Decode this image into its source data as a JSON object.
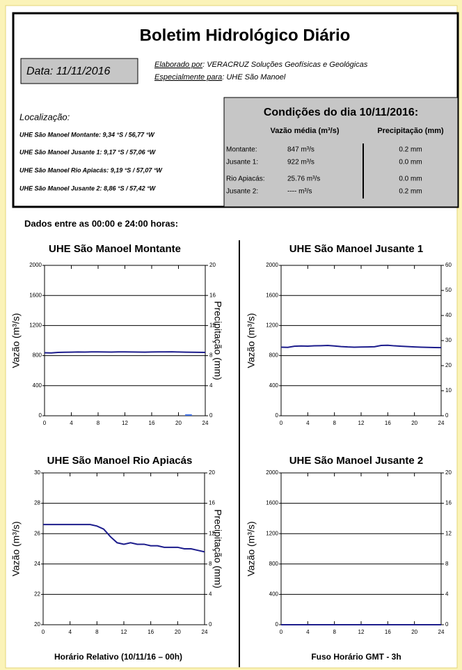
{
  "header": {
    "title": "Boletim Hidrológico Diário",
    "date": "Data: 11/11/2016",
    "elaborado_label": "Elaborado por",
    "elaborado_value": ": VERACRUZ Soluções Geofísicas e Geológicas",
    "especialmente_label": "Especialmente para",
    "especialmente_value": ": UHE São Manoel"
  },
  "localizacao": {
    "title": "Localização:",
    "lines": [
      "UHE São Manoel Montante: 9,34 °S / 56,77 °W",
      "UHE São Manoel Jusante 1: 9,17 °S / 57,06 °W",
      "UHE São Manoel Rio Apiacás: 9,19 °S / 57,07 °W",
      "UHE São Manoel Jusante 2: 8,86 °S / 57,42 °W"
    ]
  },
  "condicoes": {
    "title": "Condições do dia 10/11/2016:",
    "columns": [
      "Vazão média (m³/s)",
      "Precipitação (mm)"
    ],
    "rows": [
      [
        "Montante:",
        "847  m³/s",
        "0.2 mm"
      ],
      [
        "Jusante 1:",
        "922  m³/s",
        "0.0 mm"
      ],
      [
        "Rio Apiacás:",
        "25.76  m³/s",
        "0.0 mm"
      ],
      [
        "Jusante 2:",
        "----  m³/s",
        "0.2 mm"
      ]
    ]
  },
  "dados_label": "Dados entre as 00:00 e 24:00 horas:",
  "footer": {
    "left": "Horário Relativo (10/11/16 – 00h)",
    "right": "Fuso Horário GMT - 3h"
  },
  "chart_data": [
    {
      "type": "line",
      "title": "UHE São Manoel Montante",
      "ylabel": "Vazão (m³/s)",
      "y2label": "Precipitação (mm)",
      "x": [
        0,
        1,
        2,
        3,
        4,
        5,
        6,
        7,
        8,
        9,
        10,
        11,
        12,
        13,
        14,
        15,
        16,
        17,
        18,
        19,
        20,
        21,
        22,
        23,
        24
      ],
      "xlim": [
        0,
        24
      ],
      "xticks": [
        0,
        4,
        8,
        12,
        16,
        20,
        24
      ],
      "ylim": [
        0,
        2000
      ],
      "yticks": [
        0,
        400,
        800,
        1200,
        1600,
        2000
      ],
      "y2lim": [
        0,
        20
      ],
      "y2ticks": [
        0,
        4,
        8,
        12,
        16,
        20
      ],
      "grid": true,
      "series": [
        {
          "color": "#1c1c8c",
          "values": [
            838,
            836,
            842,
            845,
            846,
            848,
            847,
            849,
            850,
            848,
            847,
            849,
            850,
            848,
            847,
            846,
            848,
            850,
            849,
            851,
            848,
            846,
            845,
            844,
            843
          ]
        },
        {
          "color": "#3f6fe0",
          "axis": "y2",
          "x": [
            21.5
          ],
          "values": [
            0.2
          ]
        }
      ]
    },
    {
      "type": "line",
      "title": "UHE São Manoel Jusante 1",
      "ylabel": "Vazão (m³/s)",
      "x": [
        0,
        1,
        2,
        3,
        4,
        5,
        6,
        7,
        8,
        9,
        10,
        11,
        12,
        13,
        14,
        15,
        16,
        17,
        18,
        19,
        20,
        21,
        22,
        23,
        24
      ],
      "xlim": [
        0,
        24
      ],
      "xticks": [
        0,
        4,
        8,
        12,
        16,
        20,
        24
      ],
      "ylim": [
        0,
        2000
      ],
      "yticks": [
        0,
        400,
        800,
        1200,
        1600,
        2000
      ],
      "y2lim": [
        0,
        60
      ],
      "y2ticks": [
        0,
        10,
        20,
        30,
        40,
        50,
        60
      ],
      "grid": true,
      "series": [
        {
          "color": "#1c1c8c",
          "values": [
            912,
            910,
            925,
            928,
            926,
            930,
            932,
            935,
            928,
            920,
            915,
            912,
            914,
            916,
            918,
            935,
            938,
            930,
            925,
            920,
            916,
            912,
            910,
            908,
            906
          ]
        }
      ]
    },
    {
      "type": "line",
      "title": "UHE São Manoel Rio Apiacás",
      "ylabel": "Vazão (m³/s)",
      "y2label": "Precipitação (mm)",
      "x": [
        0,
        1,
        2,
        3,
        4,
        5,
        6,
        7,
        8,
        9,
        10,
        11,
        12,
        13,
        14,
        15,
        16,
        17,
        18,
        19,
        20,
        21,
        22,
        23,
        24
      ],
      "xlim": [
        0,
        24
      ],
      "xticks": [
        0,
        4,
        8,
        12,
        16,
        20,
        24
      ],
      "ylim": [
        20,
        30
      ],
      "yticks": [
        20,
        22,
        24,
        26,
        28,
        30
      ],
      "y2lim": [
        0,
        20
      ],
      "y2ticks": [
        0,
        4,
        8,
        12,
        16,
        20
      ],
      "grid": true,
      "series": [
        {
          "color": "#1c1c8c",
          "values": [
            26.6,
            26.6,
            26.6,
            26.6,
            26.6,
            26.6,
            26.6,
            26.6,
            26.5,
            26.3,
            25.8,
            25.4,
            25.3,
            25.4,
            25.3,
            25.3,
            25.2,
            25.2,
            25.1,
            25.1,
            25.1,
            25.0,
            25.0,
            24.9,
            24.8
          ]
        }
      ]
    },
    {
      "type": "line",
      "title": "UHE São Manoel Jusante 2",
      "ylabel": "Vazão (m³/s)",
      "x": [
        0,
        1,
        2,
        3,
        4,
        5,
        6,
        7,
        8,
        9,
        10,
        11,
        12,
        13,
        14,
        15,
        16,
        17,
        18,
        19,
        20,
        21,
        22,
        23,
        24
      ],
      "xlim": [
        0,
        24
      ],
      "xticks": [
        0,
        4,
        8,
        12,
        16,
        20,
        24
      ],
      "ylim": [
        0,
        2000
      ],
      "yticks": [
        0,
        400,
        800,
        1200,
        1600,
        2000
      ],
      "y2lim": [
        0,
        20
      ],
      "y2ticks": [
        0,
        4,
        8,
        12,
        16,
        20
      ],
      "grid": true,
      "series": [
        {
          "color": "#1c1c8c",
          "values": [
            0,
            0,
            0,
            0,
            0,
            0,
            0,
            0,
            0,
            0,
            0,
            0,
            0,
            0,
            0,
            0,
            0,
            0,
            0,
            0,
            0,
            0,
            0,
            0,
            0
          ]
        }
      ]
    }
  ]
}
